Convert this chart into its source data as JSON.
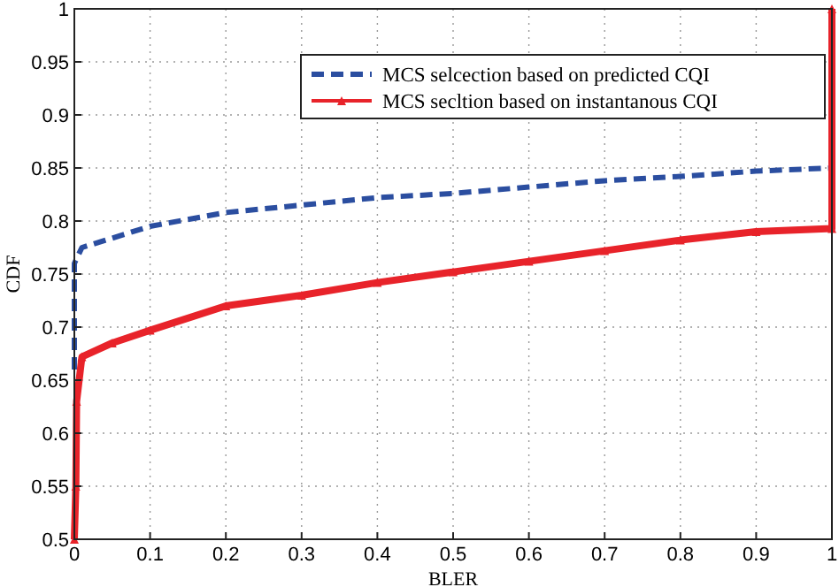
{
  "chart_data": {
    "type": "line",
    "xlabel": "BLER",
    "ylabel": "CDF",
    "xlim": [
      0,
      1
    ],
    "ylim": [
      0.5,
      1
    ],
    "xticks": [
      0,
      0.1,
      0.2,
      0.3,
      0.4,
      0.5,
      0.6,
      0.7,
      0.8,
      0.9,
      1
    ],
    "yticks": [
      0.5,
      0.55,
      0.6,
      0.65,
      0.7,
      0.75,
      0.8,
      0.85,
      0.9,
      0.95,
      1
    ],
    "grid": true,
    "legend": "top right",
    "series": [
      {
        "name": "MCS selcection based on predicted CQI",
        "color": "#2b4ea0",
        "line_style": "dashed",
        "marker": "none",
        "x": [
          0,
          0,
          0.01,
          0.1,
          0.2,
          0.3,
          0.4,
          0.5,
          0.6,
          0.7,
          0.8,
          0.9,
          1
        ],
        "values": [
          0.66,
          0.76,
          0.775,
          0.795,
          0.808,
          0.815,
          0.822,
          0.826,
          0.832,
          0.838,
          0.842,
          0.847,
          0.85
        ]
      },
      {
        "name": "MCS secltion based on instantanous CQI",
        "color": "#e8232a",
        "line_style": "solid",
        "marker": "triangle",
        "x": [
          0,
          0.002,
          0.003,
          0.01,
          0.05,
          0.1,
          0.2,
          0.3,
          0.4,
          0.5,
          0.6,
          0.7,
          0.8,
          0.9,
          1,
          1
        ],
        "values": [
          0.5,
          0.55,
          0.63,
          0.672,
          0.685,
          0.697,
          0.72,
          0.73,
          0.742,
          0.752,
          0.762,
          0.772,
          0.782,
          0.79,
          0.793,
          1
        ]
      }
    ]
  }
}
